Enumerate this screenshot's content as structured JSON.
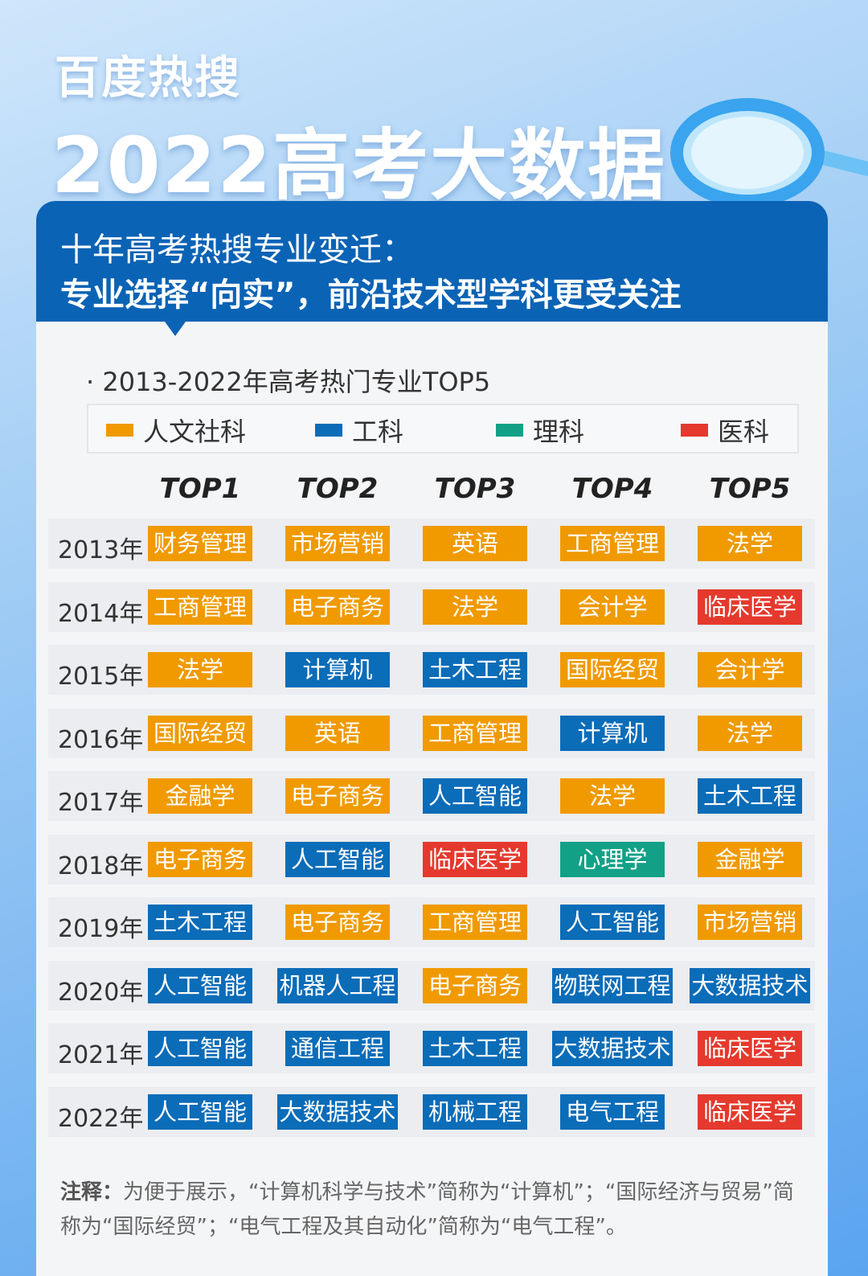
{
  "header": {
    "brand": "百度热搜",
    "title": "2022高考大数据"
  },
  "section": {
    "title": "十年高考热搜专业变迁：",
    "subtitle": "专业选择“向实”，前沿技术型学科更受关注"
  },
  "table": {
    "caption": "· 2013-2022年高考热门专业TOP5",
    "legend": [
      {
        "name": "人文社科",
        "color": "#f09a00"
      },
      {
        "name": "工科",
        "color": "#0b6cb8"
      },
      {
        "name": "理科",
        "color": "#12a187"
      },
      {
        "name": "医科",
        "color": "#e5392d"
      }
    ],
    "columns": [
      "TOP1",
      "TOP2",
      "TOP3",
      "TOP4",
      "TOP5"
    ],
    "rows": [
      {
        "year": "2013年",
        "cells": [
          {
            "label": "财务管理",
            "field": "人文社科"
          },
          {
            "label": "市场营销",
            "field": "人文社科"
          },
          {
            "label": "英语",
            "field": "人文社科"
          },
          {
            "label": "工商管理",
            "field": "人文社科"
          },
          {
            "label": "法学",
            "field": "人文社科"
          }
        ]
      },
      {
        "year": "2014年",
        "cells": [
          {
            "label": "工商管理",
            "field": "人文社科"
          },
          {
            "label": "电子商务",
            "field": "人文社科"
          },
          {
            "label": "法学",
            "field": "人文社科"
          },
          {
            "label": "会计学",
            "field": "人文社科"
          },
          {
            "label": "临床医学",
            "field": "医科"
          }
        ]
      },
      {
        "year": "2015年",
        "cells": [
          {
            "label": "法学",
            "field": "人文社科"
          },
          {
            "label": "计算机",
            "field": "工科"
          },
          {
            "label": "土木工程",
            "field": "工科"
          },
          {
            "label": "国际经贸",
            "field": "人文社科"
          },
          {
            "label": "会计学",
            "field": "人文社科"
          }
        ]
      },
      {
        "year": "2016年",
        "cells": [
          {
            "label": "国际经贸",
            "field": "人文社科"
          },
          {
            "label": "英语",
            "field": "人文社科"
          },
          {
            "label": "工商管理",
            "field": "人文社科"
          },
          {
            "label": "计算机",
            "field": "工科"
          },
          {
            "label": "法学",
            "field": "人文社科"
          }
        ]
      },
      {
        "year": "2017年",
        "cells": [
          {
            "label": "金融学",
            "field": "人文社科"
          },
          {
            "label": "电子商务",
            "field": "人文社科"
          },
          {
            "label": "人工智能",
            "field": "工科"
          },
          {
            "label": "法学",
            "field": "人文社科"
          },
          {
            "label": "土木工程",
            "field": "工科"
          }
        ]
      },
      {
        "year": "2018年",
        "cells": [
          {
            "label": "电子商务",
            "field": "人文社科"
          },
          {
            "label": "人工智能",
            "field": "工科"
          },
          {
            "label": "临床医学",
            "field": "医科"
          },
          {
            "label": "心理学",
            "field": "理科"
          },
          {
            "label": "金融学",
            "field": "人文社科"
          }
        ]
      },
      {
        "year": "2019年",
        "cells": [
          {
            "label": "土木工程",
            "field": "工科"
          },
          {
            "label": "电子商务",
            "field": "人文社科"
          },
          {
            "label": "工商管理",
            "field": "人文社科"
          },
          {
            "label": "人工智能",
            "field": "工科"
          },
          {
            "label": "市场营销",
            "field": "人文社科"
          }
        ]
      },
      {
        "year": "2020年",
        "cells": [
          {
            "label": "人工智能",
            "field": "工科"
          },
          {
            "label": "机器人工程",
            "field": "工科"
          },
          {
            "label": "电子商务",
            "field": "人文社科"
          },
          {
            "label": "物联网工程",
            "field": "工科"
          },
          {
            "label": "大数据技术",
            "field": "工科"
          }
        ]
      },
      {
        "year": "2021年",
        "cells": [
          {
            "label": "人工智能",
            "field": "工科"
          },
          {
            "label": "通信工程",
            "field": "工科"
          },
          {
            "label": "土木工程",
            "field": "工科"
          },
          {
            "label": "大数据技术",
            "field": "工科"
          },
          {
            "label": "临床医学",
            "field": "医科"
          }
        ]
      },
      {
        "year": "2022年",
        "cells": [
          {
            "label": "人工智能",
            "field": "工科"
          },
          {
            "label": "大数据技术",
            "field": "工科"
          },
          {
            "label": "机械工程",
            "field": "工科"
          },
          {
            "label": "电气工程",
            "field": "工科"
          },
          {
            "label": "临床医学",
            "field": "医科"
          }
        ]
      }
    ]
  },
  "note": {
    "label": "注释：",
    "text": "为便于展示，“计算机科学与技术”简称为“计算机”；“国际经济与贸易”简称为“国际经贸”；“电气工程及其自动化”简称为“电气工程”。"
  }
}
